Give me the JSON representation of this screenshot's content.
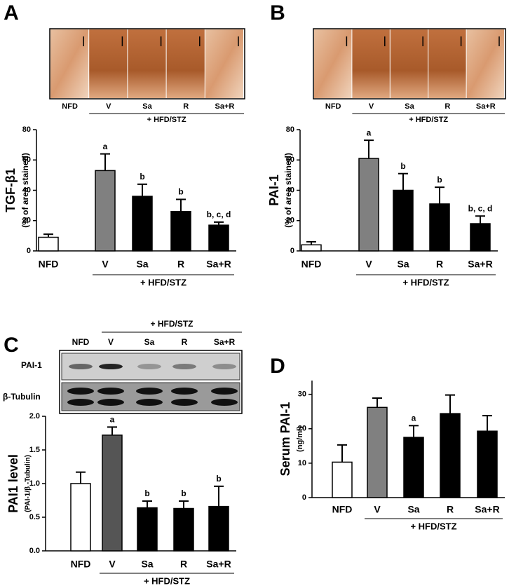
{
  "chart_data": [
    {
      "type": "bar",
      "panel": "A",
      "y_label": "TGF-β1",
      "y_sublabel": "(% of area stained)",
      "categories": [
        "NFD",
        "V",
        "Sa",
        "R",
        "Sa+R"
      ],
      "values": [
        9,
        53,
        36,
        26,
        17
      ],
      "errors": [
        2,
        11,
        8,
        8,
        2
      ],
      "annotations": [
        null,
        "a",
        "b",
        "b",
        "b, c, d"
      ],
      "colors": [
        "#ffffff",
        "#808080",
        "#000000",
        "#000000",
        "#000000"
      ],
      "ylim": [
        0,
        80
      ],
      "yticks": [
        0,
        20,
        40,
        60,
        80
      ],
      "group_label": "+ HFD/STZ",
      "micrograph_labels": [
        "NFD",
        "V",
        "Sa",
        "R",
        "Sa+R"
      ],
      "micrograph_group_label": "+ HFD/STZ"
    },
    {
      "type": "bar",
      "panel": "B",
      "y_label": "PAI-1",
      "y_sublabel": "(% of area stained)",
      "categories": [
        "NFD",
        "V",
        "Sa",
        "R",
        "Sa+R"
      ],
      "values": [
        4,
        61,
        40,
        31,
        18
      ],
      "errors": [
        2,
        12,
        11,
        11,
        5
      ],
      "annotations": [
        null,
        "a",
        "b",
        "b",
        "b, c, d"
      ],
      "colors": [
        "#ffffff",
        "#808080",
        "#000000",
        "#000000",
        "#000000"
      ],
      "ylim": [
        0,
        80
      ],
      "yticks": [
        0,
        20,
        40,
        60,
        80
      ],
      "group_label": "+ HFD/STZ",
      "micrograph_labels": [
        "NFD",
        "V",
        "Sa",
        "R",
        "Sa+R"
      ],
      "micrograph_group_label": "+ HFD/STZ"
    },
    {
      "type": "bar",
      "panel": "C",
      "y_label": "PAI1 level",
      "y_sublabel": "(PAI-1/β -Tubulin)",
      "categories": [
        "NFD",
        "V",
        "Sa",
        "R",
        "Sa+R"
      ],
      "values": [
        1.0,
        1.72,
        0.64,
        0.63,
        0.66
      ],
      "errors": [
        0.17,
        0.12,
        0.1,
        0.11,
        0.3
      ],
      "annotations": [
        null,
        "a",
        "b",
        "b",
        "b"
      ],
      "colors": [
        "#ffffff",
        "#555555",
        "#000000",
        "#000000",
        "#000000"
      ],
      "ylim": [
        0,
        2.0
      ],
      "yticks": [
        {
          "value": 0,
          "label": "0.0"
        },
        0.5,
        {
          "value": 1,
          "label": "1.0"
        },
        1.5,
        {
          "value": 2,
          "label": "2.0"
        }
      ],
      "group_label": "+ HFD/STZ",
      "blot_lane_labels": [
        "NFD",
        "V",
        "Sa",
        "R",
        "Sa+R"
      ],
      "blot_group_label": "+ HFD/STZ",
      "blot_row_labels": [
        "PAI-1",
        "β-Tubulin"
      ]
    },
    {
      "type": "bar",
      "panel": "D",
      "y_label": "Serum PAI-1",
      "y_sublabel": "(ng/ml)",
      "categories": [
        "NFD",
        "V",
        "Sa",
        "R",
        "Sa+R"
      ],
      "values": [
        10.3,
        26.2,
        17.5,
        24.4,
        19.3
      ],
      "errors": [
        5,
        2.7,
        3.4,
        5.4,
        4.5
      ],
      "annotations": [
        null,
        null,
        "a",
        null,
        null
      ],
      "colors": [
        "#ffffff",
        "#808080",
        "#000000",
        "#000000",
        "#000000"
      ],
      "ylim": [
        0,
        34
      ],
      "yticks": [
        0,
        10,
        20,
        30
      ],
      "group_label": "+ HFD/STZ"
    }
  ]
}
